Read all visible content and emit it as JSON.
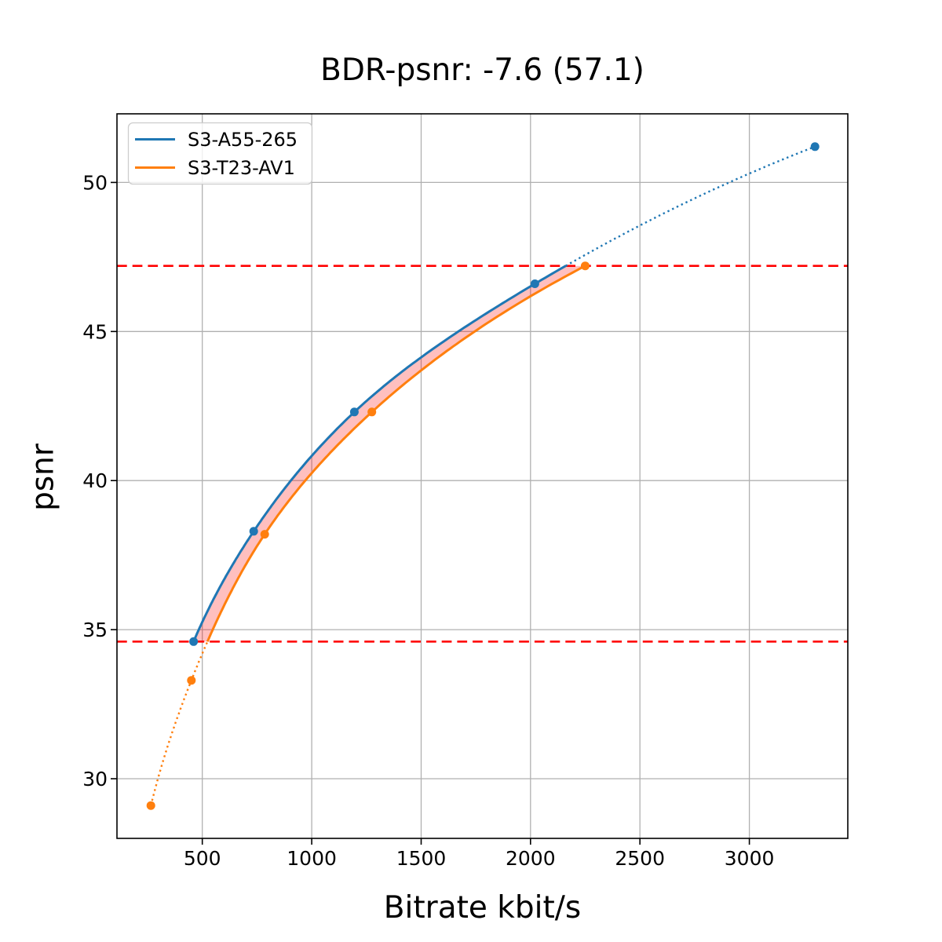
{
  "chart_data": {
    "type": "line",
    "title": "BDR-psnr: -7.6 (57.1)",
    "xlabel": "Bitrate kbit/s",
    "ylabel": "psnr",
    "xlim": [
      110,
      3450
    ],
    "ylim": [
      28.0,
      52.3
    ],
    "xticks": [
      500,
      1000,
      1500,
      2000,
      2500,
      3000
    ],
    "yticks": [
      30,
      35,
      40,
      45,
      50
    ],
    "grid": true,
    "grid_color": "#b0b0b0",
    "legend": {
      "position": "upper left",
      "entries": [
        "S3-A55-265",
        "S3-T23-AV1"
      ]
    },
    "series": [
      {
        "name": "S3-A55-265",
        "color": "#1f77b4",
        "marker": "circle",
        "x": [
          460,
          735,
          1195,
          2020,
          3300
        ],
        "y": [
          34.6,
          38.3,
          42.3,
          46.6,
          51.2
        ]
      },
      {
        "name": "S3-T23-AV1",
        "color": "#ff7f0e",
        "marker": "circle",
        "x": [
          265,
          450,
          785,
          1275,
          2250
        ],
        "y": [
          29.1,
          33.3,
          38.2,
          42.3,
          47.2
        ]
      }
    ],
    "bd_interval": {
      "lower_psnr": 34.6,
      "upper_psnr": 47.2,
      "line_color": "#ff0000",
      "line_style": "dashed",
      "fill_color": "rgba(255,0,0,0.25)"
    }
  }
}
